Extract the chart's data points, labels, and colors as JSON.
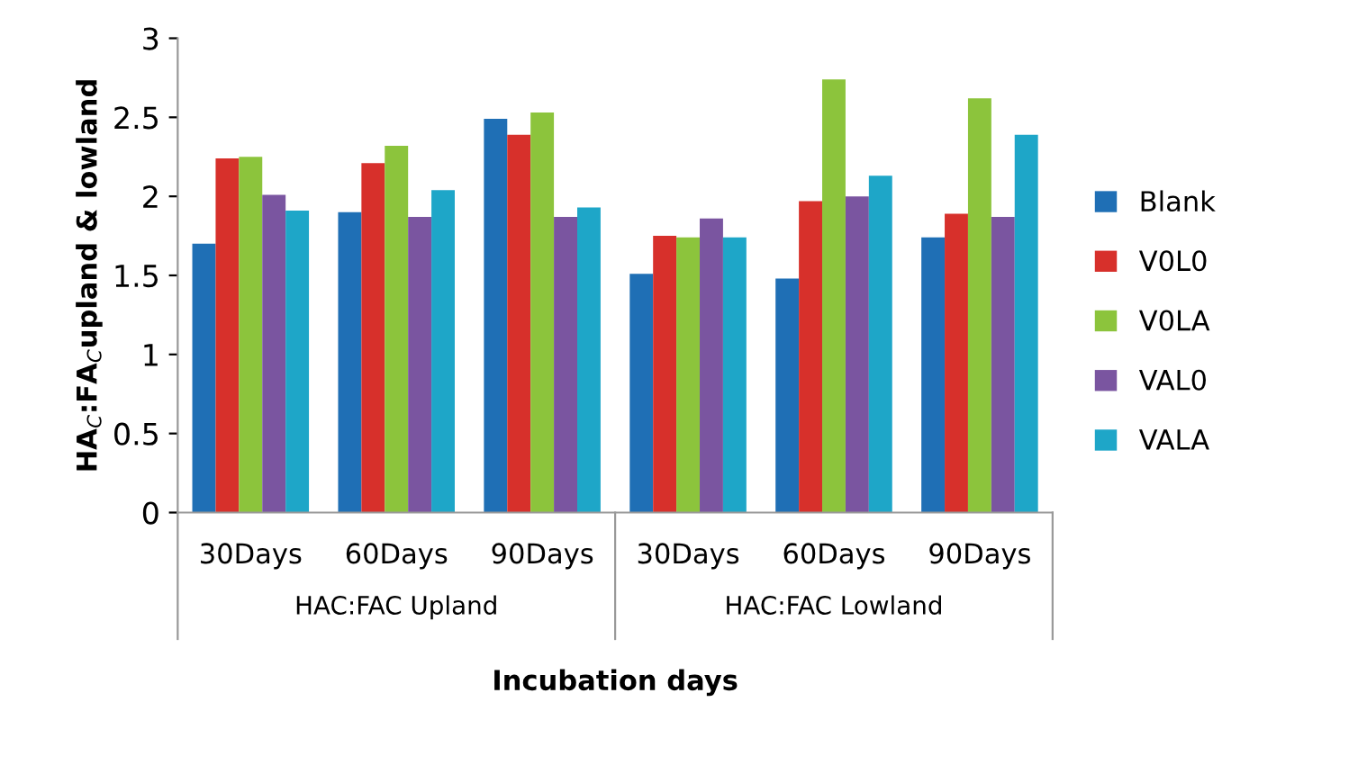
{
  "chart_data": {
    "type": "bar",
    "xlabel": "Incubation days",
    "ylabel": "HA$_{C}$:FA$_{C}$upland & lowland",
    "categories": [
      "30Days",
      "60Days",
      "90Days",
      "30Days",
      "60Days",
      "90Days"
    ],
    "annotations": [
      "HAC:FAC Upland",
      "HAC:FAC Lowland"
    ],
    "series": [
      {
        "name": "Blank",
        "color": "#1f6fb5",
        "values": [
          1.7,
          1.9,
          2.49,
          1.51,
          1.48,
          1.74
        ]
      },
      {
        "name": "V0L0",
        "color": "#d7302b",
        "values": [
          2.24,
          2.21,
          2.39,
          1.75,
          1.97,
          1.89
        ]
      },
      {
        "name": "V0LA",
        "color": "#8cc43c",
        "values": [
          2.25,
          2.32,
          2.53,
          1.74,
          2.74,
          2.62
        ]
      },
      {
        "name": "VAL0",
        "color": "#7a55a0",
        "values": [
          2.01,
          1.87,
          1.87,
          1.86,
          2.0,
          1.87
        ]
      },
      {
        "name": "VALA",
        "color": "#1ea6c8",
        "values": [
          1.91,
          2.04,
          1.93,
          1.74,
          2.13,
          2.39
        ]
      }
    ],
    "ylim": [
      0,
      3
    ],
    "yticks": [
      0,
      0.5,
      1,
      1.5,
      2,
      2.5,
      3
    ],
    "grid": false,
    "legend": "right"
  }
}
